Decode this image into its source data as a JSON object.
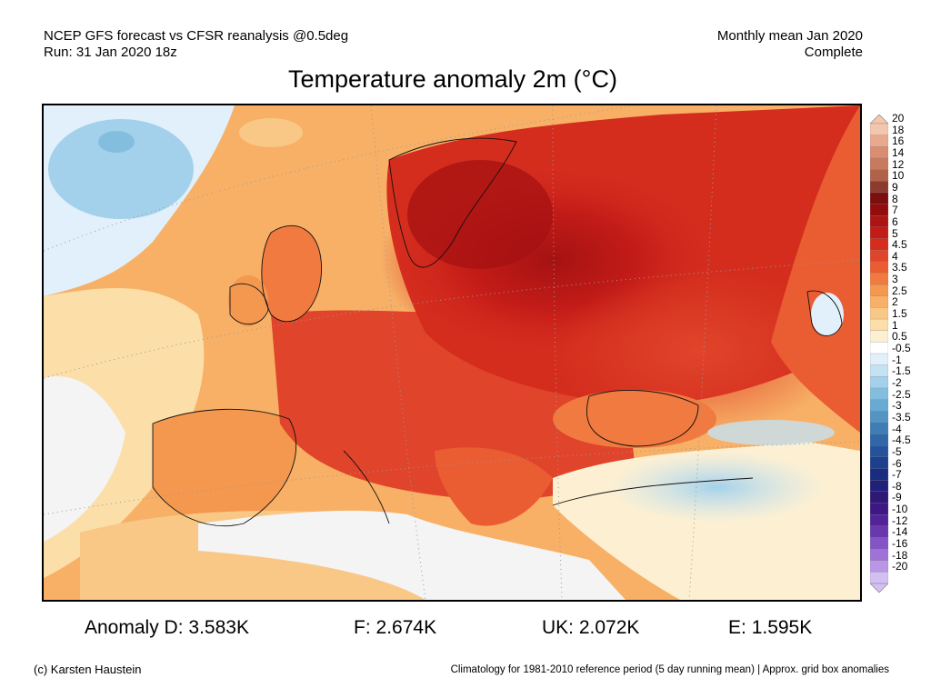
{
  "header": {
    "source_line": "NCEP GFS forecast vs CFSR reanalysis @0.5deg",
    "run_line": "Run: 31 Jan 2020 18z",
    "period_line": "Monthly mean Jan 2020",
    "status_line": "Complete"
  },
  "title": "Temperature anomaly 2m (°C)",
  "colorbar": {
    "labels": [
      "20",
      "18",
      "16",
      "14",
      "12",
      "10",
      "9",
      "8",
      "7",
      "6",
      "5",
      "4.5",
      "4",
      "3.5",
      "3",
      "2.5",
      "2",
      "1.5",
      "1",
      "0.5",
      "-0.5",
      "-1",
      "-1.5",
      "-2",
      "-2.5",
      "-3",
      "-3.5",
      "-4",
      "-4.5",
      "-5",
      "-6",
      "-7",
      "-8",
      "-9",
      "-10",
      "-12",
      "-14",
      "-16",
      "-18",
      "-20"
    ],
    "colors": [
      "#f4c6ae",
      "#e8a98d",
      "#d98e72",
      "#c77a5e",
      "#b0634a",
      "#8e3b2f",
      "#7a0f0f",
      "#940d0d",
      "#ad1414",
      "#c21c18",
      "#d42d1e",
      "#e0442a",
      "#ea5c32",
      "#f07a3f",
      "#f4974f",
      "#f7b066",
      "#f9c886",
      "#fbdea8",
      "#fdf0d2",
      "#ffffff",
      "#e1f0fa",
      "#c4e2f3",
      "#a3d1eb",
      "#84bedf",
      "#69aad2",
      "#5394c4",
      "#3f7db5",
      "#3067a8",
      "#25529b",
      "#1c3f8e",
      "#1a2c80",
      "#21207a",
      "#2e1a76",
      "#3d1785",
      "#512396",
      "#6a38ad",
      "#8554c4",
      "#9e72d6",
      "#b996e6",
      "#d4bff2"
    ]
  },
  "stats": [
    {
      "label": "Anomaly D:",
      "value": "3.583K"
    },
    {
      "label": "F:",
      "value": "2.674K"
    },
    {
      "label": "UK:",
      "value": "2.072K"
    },
    {
      "label": "E:",
      "value": "1.595K"
    }
  ],
  "footer": {
    "credit": "(c) Karsten Haustein",
    "note": "Climatology for 1981-2010 reference period (5 day running mean) | Approx. grid box anomalies"
  }
}
